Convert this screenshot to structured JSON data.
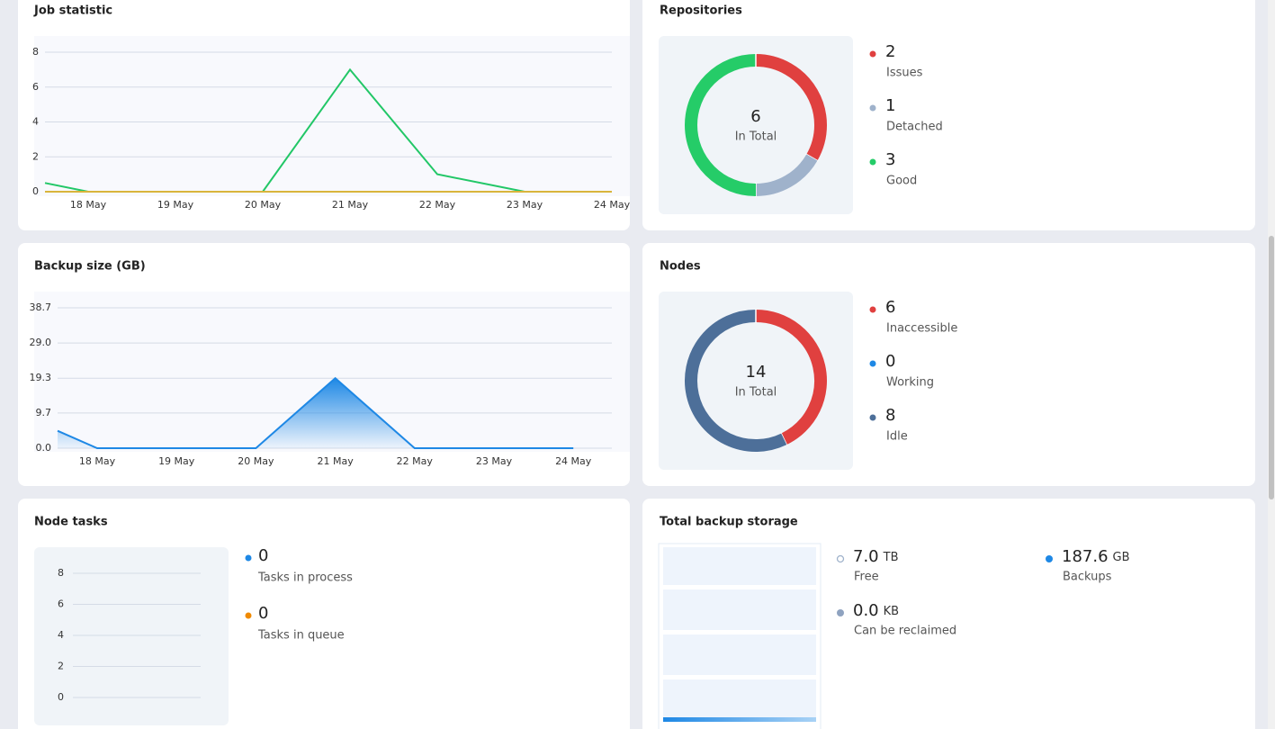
{
  "job_statistic": {
    "title": "Job statistic",
    "type": "line",
    "categories": [
      null,
      "18 May",
      "19 May",
      "20 May",
      "21 May",
      "22 May",
      "23 May",
      "24 May"
    ],
    "series": [
      {
        "color": "#22c767",
        "values": [
          0.5,
          0,
          0,
          0,
          7,
          1,
          0,
          0
        ]
      },
      {
        "color": "#d9b53c",
        "values": [
          0,
          0,
          0,
          0,
          0,
          0,
          0,
          0
        ]
      }
    ],
    "ylim": [
      0,
      8
    ],
    "yticks": [
      0,
      2,
      4,
      6,
      8
    ],
    "grid": true
  },
  "backup_size": {
    "title": "Backup size (GB)",
    "type": "area",
    "categories": [
      null,
      "18 May",
      "19 May",
      "20 May",
      "21 May",
      "22 May",
      "23 May",
      "24 May"
    ],
    "series": [
      {
        "color": "#1e88e5",
        "values": [
          4.8,
          0,
          0,
          0,
          19.3,
          0,
          0,
          0
        ]
      }
    ],
    "ylim": [
      0,
      38.7
    ],
    "yticks": [
      {
        "value": 0,
        "label": "0.0"
      },
      {
        "value": 9.7,
        "label": "9.7"
      },
      {
        "value": 19.3,
        "label": "19.3"
      },
      {
        "value": 29,
        "label": "29.0"
      },
      {
        "value": 38.7,
        "label": "38.7"
      }
    ],
    "grid": true
  },
  "repositories": {
    "title": "Repositories",
    "type": "donut",
    "total": 6,
    "total_label": "In Total",
    "items": [
      {
        "name": "Issues",
        "value": 2,
        "color": "#e0403f"
      },
      {
        "name": "Detached",
        "value": 1,
        "color": "#9fb2cb"
      },
      {
        "name": "Good",
        "value": 3,
        "color": "#25cc68"
      }
    ]
  },
  "nodes": {
    "title": "Nodes",
    "type": "donut",
    "total": 14,
    "total_label": "In Total",
    "items": [
      {
        "name": "Inaccessible",
        "value": 6,
        "color": "#e0403f"
      },
      {
        "name": "Working",
        "value": 0,
        "color": "#1e88e5"
      },
      {
        "name": "Idle",
        "value": 8,
        "color": "#4d6f99"
      }
    ]
  },
  "node_tasks": {
    "title": "Node tasks",
    "ylim": [
      0,
      8
    ],
    "yticks": [
      0,
      2,
      4,
      6,
      8
    ],
    "grid": true,
    "items": [
      {
        "name": "Tasks in process",
        "value": 0,
        "color": "#1e88e5"
      },
      {
        "name": "Tasks in queue",
        "value": 0,
        "color": "#f08a00"
      }
    ]
  },
  "total_backup_storage": {
    "title": "Total backup storage",
    "items": [
      {
        "value": "7.0",
        "unit": "TB",
        "name": "Free",
        "color": "#9fb2cb",
        "hollow": true
      },
      {
        "value": "0.0",
        "unit": "KB",
        "name": "Can be reclaimed",
        "color": "#8fa3c0"
      },
      {
        "value": "187.6",
        "unit": "GB",
        "name": "Backups",
        "color": "#1e88e5"
      }
    ]
  }
}
